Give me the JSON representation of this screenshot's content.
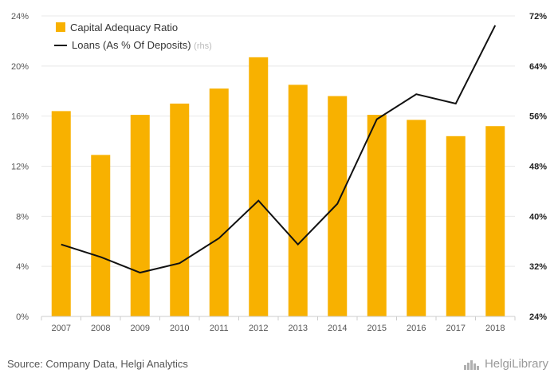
{
  "chart_data": {
    "type": "bar",
    "categories": [
      "2007",
      "2008",
      "2009",
      "2010",
      "2011",
      "2012",
      "2013",
      "2014",
      "2015",
      "2016",
      "2017",
      "2018"
    ],
    "series": [
      {
        "name": "Capital Adequacy Ratio",
        "type": "bar",
        "axis": "left",
        "values": [
          16.4,
          12.9,
          16.1,
          17.0,
          18.2,
          20.7,
          18.5,
          17.6,
          16.1,
          15.7,
          14.4,
          15.2
        ]
      },
      {
        "name": "Loans (As % Of Deposits)",
        "legend_suffix": "(rhs)",
        "type": "line",
        "axis": "right",
        "values": [
          35.5,
          33.5,
          31.0,
          32.5,
          36.5,
          42.5,
          35.5,
          42.0,
          55.5,
          59.5,
          58.0,
          70.5
        ]
      }
    ],
    "y_left": {
      "ylim": [
        0,
        24
      ],
      "ticks": [
        "0%",
        "4%",
        "8%",
        "12%",
        "16%",
        "20%",
        "24%"
      ]
    },
    "y_right": {
      "ylim": [
        24,
        72
      ],
      "ticks": [
        "24%",
        "32%",
        "40%",
        "48%",
        "56%",
        "64%",
        "72%"
      ]
    },
    "colors": {
      "bar": "#f8b100",
      "line": "#111111",
      "grid": "#e8e8e8",
      "axis": "#cccccc"
    },
    "grid": true,
    "legend_position": "top-left"
  },
  "footer": {
    "source": "Source: Company Data, Helgi Analytics",
    "brand": "HelgiLibrary",
    "brand_icon": "helgi-logo-icon"
  }
}
